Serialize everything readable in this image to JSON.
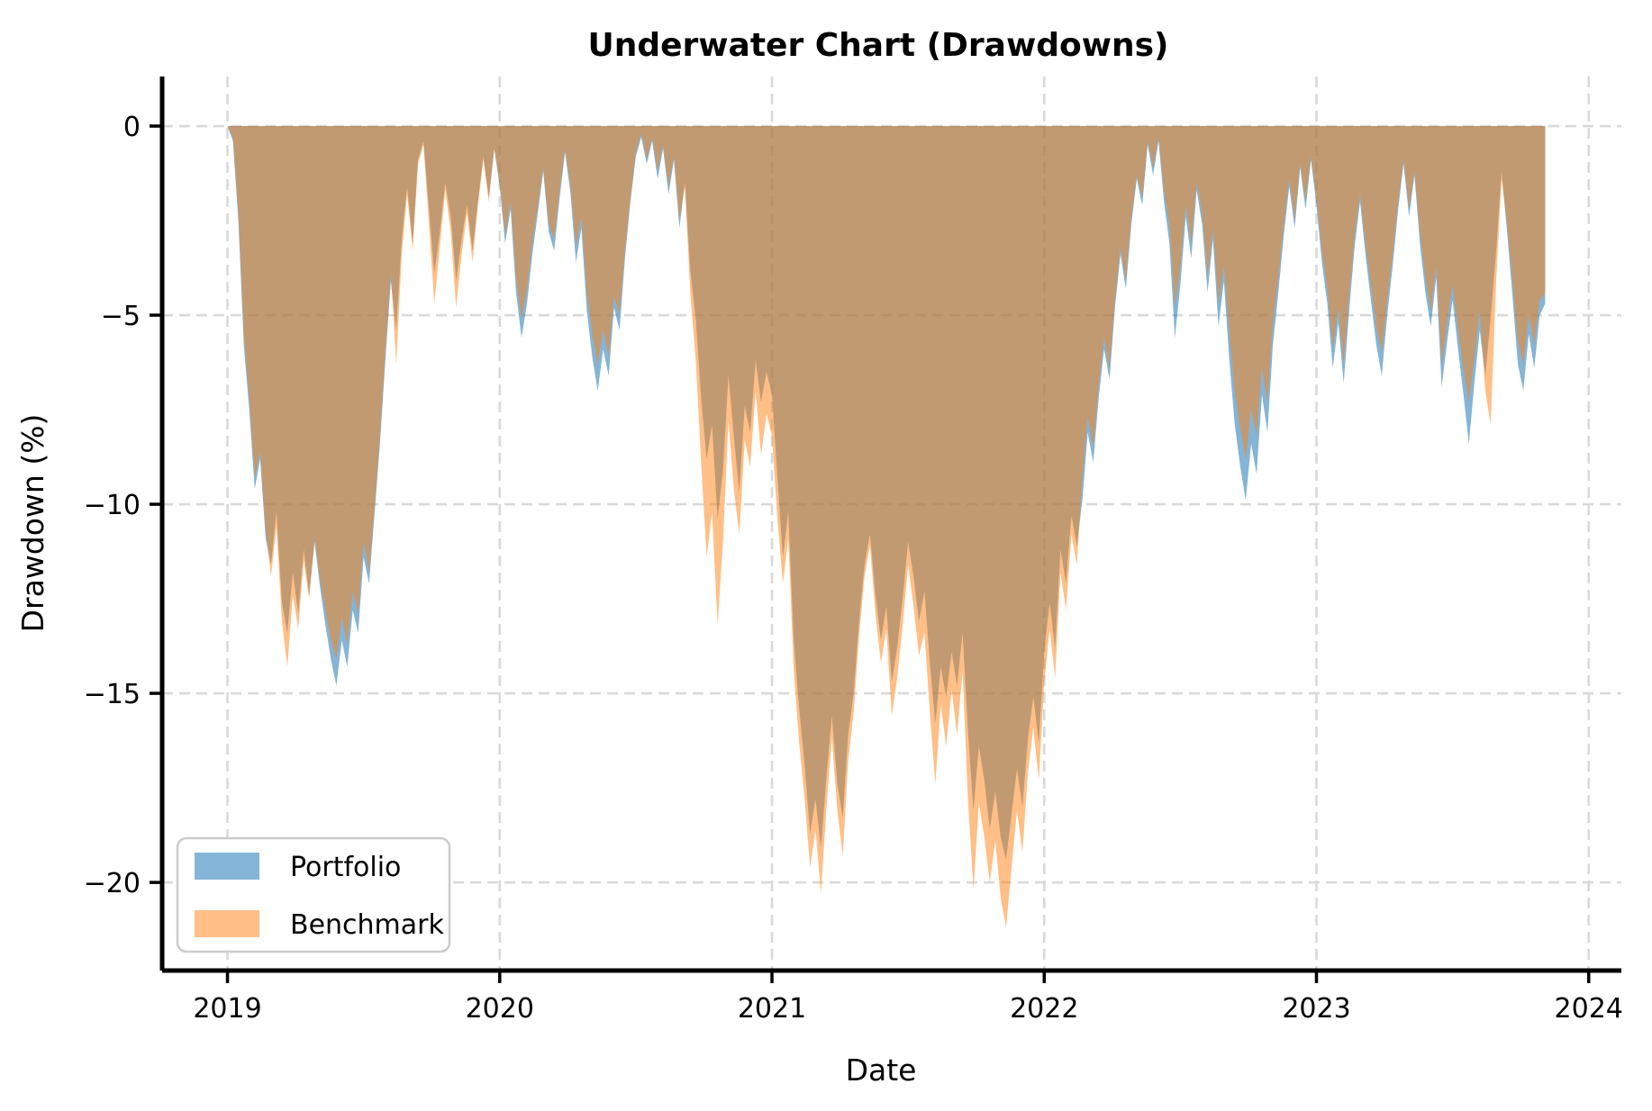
{
  "chart_data": {
    "type": "area",
    "title": "Underwater Chart (Drawdowns)",
    "xlabel": "Date",
    "ylabel": "Drawdown (%)",
    "grid": true,
    "xlim": [
      2018.76,
      2024.12
    ],
    "ylim": [
      -22.33,
      1.31
    ],
    "x_ticks": [
      2019,
      2020,
      2021,
      2022,
      2023,
      2024
    ],
    "x_tick_labels": [
      "2019",
      "2020",
      "2021",
      "2022",
      "2023",
      "2024"
    ],
    "y_ticks": [
      0,
      -5,
      -10,
      -15,
      -20
    ],
    "y_tick_labels": [
      "0",
      "−5",
      "−10",
      "−15",
      "−20"
    ],
    "legend": {
      "position": "lower left",
      "entries": [
        {
          "label": "Portfolio",
          "swatch": "#84b4d6"
        },
        {
          "label": "Benchmark",
          "swatch": "#ffbf86"
        }
      ]
    },
    "x": [
      2019,
      2019.02,
      2019.04,
      2019.06,
      2019.08,
      2019.1,
      2019.12,
      2019.14,
      2019.16,
      2019.18,
      2019.2,
      2019.22,
      2019.24,
      2019.26,
      2019.28,
      2019.3,
      2019.32,
      2019.34,
      2019.36,
      2019.38,
      2019.4,
      2019.42,
      2019.44,
      2019.46,
      2019.48,
      2019.5,
      2019.52,
      2019.54,
      2019.56,
      2019.58,
      2019.6,
      2019.62,
      2019.64,
      2019.66,
      2019.68,
      2019.7,
      2019.72,
      2019.74,
      2019.76,
      2019.78,
      2019.8,
      2019.82,
      2019.84,
      2019.86,
      2019.88,
      2019.9,
      2019.92,
      2019.94,
      2019.96,
      2019.98,
      2020,
      2020.02,
      2020.04,
      2020.06,
      2020.08,
      2020.1,
      2020.12,
      2020.14,
      2020.16,
      2020.18,
      2020.2,
      2020.22,
      2020.24,
      2020.26,
      2020.28,
      2020.3,
      2020.32,
      2020.34,
      2020.36,
      2020.38,
      2020.4,
      2020.42,
      2020.44,
      2020.46,
      2020.48,
      2020.5,
      2020.52,
      2020.54,
      2020.56,
      2020.58,
      2020.6,
      2020.62,
      2020.64,
      2020.66,
      2020.68,
      2020.7,
      2020.72,
      2020.74,
      2020.76,
      2020.78,
      2020.8,
      2020.82,
      2020.84,
      2020.86,
      2020.88,
      2020.9,
      2020.92,
      2020.94,
      2020.96,
      2020.98,
      2021,
      2021.02,
      2021.04,
      2021.06,
      2021.08,
      2021.1,
      2021.12,
      2021.14,
      2021.16,
      2021.18,
      2021.2,
      2021.22,
      2021.24,
      2021.26,
      2021.28,
      2021.3,
      2021.32,
      2021.34,
      2021.36,
      2021.38,
      2021.4,
      2021.42,
      2021.44,
      2021.46,
      2021.48,
      2021.5,
      2021.52,
      2021.54,
      2021.56,
      2021.58,
      2021.6,
      2021.62,
      2021.64,
      2021.66,
      2021.68,
      2021.7,
      2021.72,
      2021.74,
      2021.76,
      2021.78,
      2021.8,
      2021.82,
      2021.84,
      2021.86,
      2021.88,
      2021.9,
      2021.92,
      2021.94,
      2021.96,
      2021.98,
      2022,
      2022.02,
      2022.04,
      2022.06,
      2022.08,
      2022.1,
      2022.12,
      2022.14,
      2022.16,
      2022.18,
      2022.2,
      2022.22,
      2022.24,
      2022.26,
      2022.28,
      2022.3,
      2022.32,
      2022.34,
      2022.36,
      2022.38,
      2022.4,
      2022.42,
      2022.44,
      2022.46,
      2022.48,
      2022.5,
      2022.52,
      2022.54,
      2022.56,
      2022.58,
      2022.6,
      2022.62,
      2022.64,
      2022.66,
      2022.68,
      2022.7,
      2022.72,
      2022.74,
      2022.76,
      2022.78,
      2022.8,
      2022.82,
      2022.84,
      2022.86,
      2022.88,
      2022.9,
      2022.92,
      2022.94,
      2022.96,
      2022.98,
      2023,
      2023.02,
      2023.04,
      2023.06,
      2023.08,
      2023.1,
      2023.12,
      2023.14,
      2023.16,
      2023.18,
      2023.2,
      2023.22,
      2023.24,
      2023.26,
      2023.28,
      2023.3,
      2023.32,
      2023.34,
      2023.36,
      2023.38,
      2023.4,
      2023.42,
      2023.44,
      2023.46,
      2023.48,
      2023.5,
      2023.52,
      2023.54,
      2023.56,
      2023.58,
      2023.6,
      2023.62,
      2023.64,
      2023.66,
      2023.68,
      2023.7,
      2023.72,
      2023.74,
      2023.76,
      2023.78,
      2023.8,
      2023.82,
      2023.84
    ],
    "series": [
      {
        "name": "Portfolio",
        "color": "#1f77b4",
        "fill_opacity": 0.55,
        "values": [
          0,
          -0.4,
          -2.5,
          -5.8,
          -7.5,
          -9.6,
          -8.8,
          -10.9,
          -11.6,
          -10.2,
          -12.6,
          -13.4,
          -11.8,
          -12.9,
          -11.2,
          -12.4,
          -11,
          -12.2,
          -13.2,
          -14.1,
          -14.8,
          -13.6,
          -14.3,
          -12.8,
          -13.4,
          -11.4,
          -12.1,
          -10.3,
          -8.4,
          -6.2,
          -4.1,
          -5.4,
          -3,
          -1.6,
          -3.1,
          -0.9,
          -0.4,
          -2.2,
          -3.9,
          -2.8,
          -1.5,
          -2.4,
          -4.1,
          -3,
          -2.1,
          -3.3,
          -2,
          -0.8,
          -1.9,
          -0.6,
          -1.6,
          -3.1,
          -2.2,
          -4.4,
          -5.6,
          -4.7,
          -3.4,
          -2.3,
          -1.2,
          -2.8,
          -3.3,
          -1.9,
          -0.7,
          -1.8,
          -3.6,
          -2.7,
          -4.9,
          -6.1,
          -7,
          -5.9,
          -6.6,
          -4.8,
          -5.4,
          -3.5,
          -2,
          -0.8,
          -0.3,
          -1,
          -0.4,
          -1.4,
          -0.6,
          -1.8,
          -0.9,
          -2.7,
          -1.5,
          -3.8,
          -5.1,
          -7.2,
          -8.8,
          -7.9,
          -10.4,
          -9.1,
          -6.6,
          -8.2,
          -9.7,
          -7.4,
          -8.1,
          -6.2,
          -7.3,
          -6.5,
          -7.1,
          -9.3,
          -11.4,
          -10.2,
          -13.6,
          -15.4,
          -16.9,
          -18.7,
          -17.8,
          -19.1,
          -17.2,
          -15.6,
          -17.4,
          -18.3,
          -16.1,
          -15,
          -13.1,
          -11.6,
          -10.8,
          -12.4,
          -13.6,
          -12.7,
          -14.7,
          -13.8,
          -12.5,
          -11,
          -11.9,
          -13.1,
          -12.3,
          -14.2,
          -15.8,
          -14.3,
          -15.1,
          -13.9,
          -14.8,
          -13.4,
          -16,
          -18.1,
          -16.4,
          -17.3,
          -18.6,
          -17.6,
          -18.8,
          -19.4,
          -18.2,
          -17,
          -18,
          -16.2,
          -15.1,
          -16.3,
          -13.9,
          -12.6,
          -13.8,
          -11.2,
          -12.1,
          -10.3,
          -11.1,
          -9.9,
          -8.1,
          -8.9,
          -7.2,
          -5.9,
          -6.7,
          -4.8,
          -3.4,
          -4.3,
          -2.6,
          -1.4,
          -2.1,
          -0.5,
          -1.3,
          -0.4,
          -2,
          -3.1,
          -5.6,
          -4.2,
          -2.4,
          -3.5,
          -1.7,
          -2.6,
          -4.4,
          -3,
          -5.3,
          -4.1,
          -6.2,
          -7.9,
          -9,
          -9.9,
          -8.4,
          -9.2,
          -7.1,
          -8.1,
          -5.8,
          -4.4,
          -2.9,
          -1.6,
          -2.7,
          -1.1,
          -2.2,
          -0.9,
          -2.1,
          -3.6,
          -4.7,
          -6.4,
          -5.2,
          -6.8,
          -4.9,
          -3.2,
          -2,
          -3.4,
          -4.6,
          -5.8,
          -6.6,
          -5,
          -3.7,
          -2.2,
          -1,
          -2.4,
          -1.3,
          -3.1,
          -4.4,
          -5.3,
          -4,
          -6.9,
          -5.7,
          -4.6,
          -5.9,
          -7.1,
          -8.4,
          -6.8,
          -5.4,
          -6.6,
          -5.1,
          -3.3,
          -1.2,
          -2.8,
          -4.5,
          -6.3,
          -7,
          -5.5,
          -6.4,
          -5,
          -4.7
        ]
      },
      {
        "name": "Benchmark",
        "color": "#ff7f0e",
        "fill_opacity": 0.5,
        "values": [
          0,
          -0.3,
          -2.3,
          -5.5,
          -7.2,
          -9.3,
          -8.6,
          -10.7,
          -11.9,
          -10.6,
          -13.1,
          -14.3,
          -12.4,
          -13.3,
          -11.5,
          -12.5,
          -10.9,
          -12,
          -12.8,
          -13.6,
          -14.1,
          -13,
          -13.7,
          -12.3,
          -12.9,
          -11,
          -11.8,
          -10.1,
          -8.2,
          -6,
          -3.9,
          -6.3,
          -3.4,
          -1.8,
          -3.3,
          -1,
          -0.5,
          -2.6,
          -4.7,
          -3.2,
          -1.7,
          -2.8,
          -4.8,
          -3.4,
          -2.3,
          -3.6,
          -2.1,
          -0.9,
          -2,
          -0.6,
          -1.5,
          -2.9,
          -2,
          -4,
          -5.1,
          -4.3,
          -3.1,
          -2.1,
          -1.1,
          -2.6,
          -3,
          -1.7,
          -0.6,
          -1.6,
          -3.2,
          -2.4,
          -4.4,
          -5.5,
          -6.3,
          -5.4,
          -6.1,
          -4.5,
          -5,
          -3.3,
          -1.9,
          -0.7,
          -0.2,
          -0.9,
          -0.3,
          -1.2,
          -0.5,
          -1.6,
          -0.8,
          -2.5,
          -1.6,
          -4.4,
          -6.2,
          -8.9,
          -11.4,
          -10.2,
          -13.2,
          -11,
          -7.8,
          -9.6,
          -10.8,
          -8.3,
          -9,
          -7,
          -8.7,
          -7.6,
          -8.2,
          -10.4,
          -12.1,
          -10.9,
          -14.4,
          -16.3,
          -17.8,
          -19.6,
          -18.6,
          -20.3,
          -18,
          -16.2,
          -18.1,
          -19.3,
          -16.8,
          -15.5,
          -13.5,
          -11.9,
          -11.1,
          -12.9,
          -14.2,
          -13.3,
          -15.6,
          -14.6,
          -13.2,
          -11.6,
          -12.7,
          -14,
          -13.4,
          -15.5,
          -17.4,
          -15.3,
          -16.4,
          -14.9,
          -16.1,
          -14.4,
          -17.8,
          -20.2,
          -17.9,
          -18.8,
          -20,
          -18.9,
          -20.4,
          -21.2,
          -19.6,
          -18.1,
          -19.2,
          -17.1,
          -15.9,
          -17.3,
          -14.7,
          -13.3,
          -14.6,
          -11.8,
          -12.8,
          -10.8,
          -11.6,
          -9.3,
          -7.7,
          -8.5,
          -6.9,
          -5.6,
          -6.4,
          -4.6,
          -3.2,
          -4.1,
          -2.4,
          -1.3,
          -1.9,
          -0.4,
          -1.1,
          -0.3,
          -1.7,
          -2.6,
          -4.8,
          -3.7,
          -2.1,
          -3.1,
          -1.5,
          -2.3,
          -4,
          -2.7,
          -4.7,
          -3.7,
          -5.5,
          -7,
          -8,
          -8.8,
          -7.5,
          -8.2,
          -6.4,
          -7.3,
          -5.2,
          -4,
          -2.6,
          -1.4,
          -2.5,
          -1,
          -2,
          -0.8,
          -1.9,
          -3.3,
          -4.3,
          -5.9,
          -4.8,
          -6.3,
          -4.5,
          -2.9,
          -1.8,
          -3.1,
          -4.2,
          -5.3,
          -6,
          -4.6,
          -3.4,
          -2,
          -0.9,
          -2.2,
          -1.2,
          -2.8,
          -4,
          -4.9,
          -3.7,
          -6.3,
          -5.2,
          -4.2,
          -5.4,
          -6.4,
          -7.3,
          -6.1,
          -4.9,
          -7,
          -7.9,
          -4.1,
          -1.4,
          -2.6,
          -4.1,
          -5.7,
          -6.3,
          -5,
          -5.8,
          -4.6,
          -4.4
        ]
      }
    ]
  }
}
